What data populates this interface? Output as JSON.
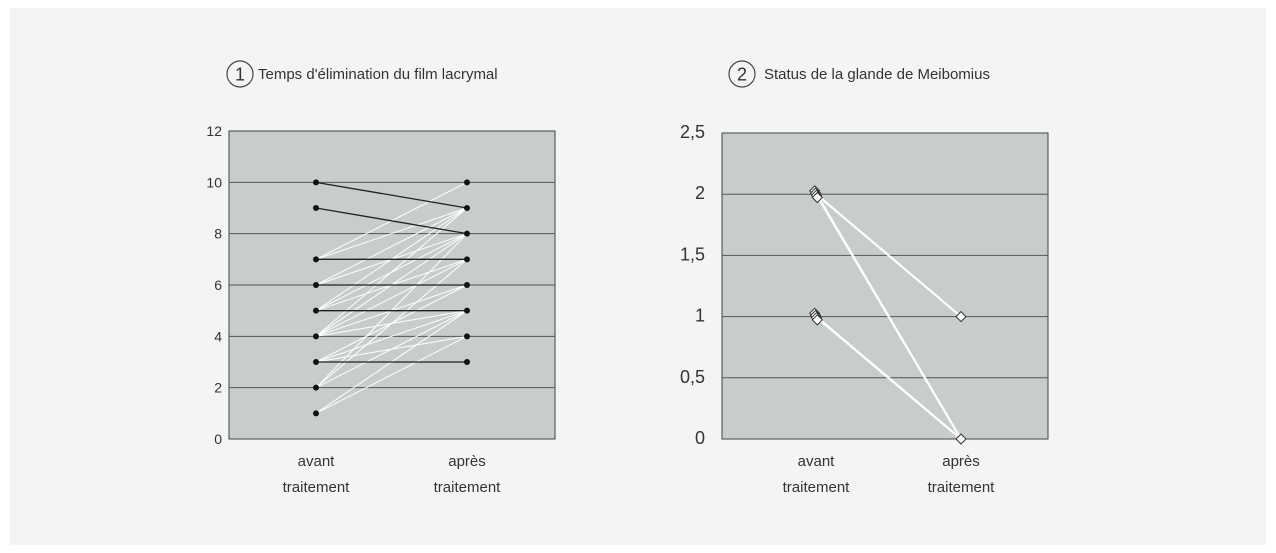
{
  "chart_data": [
    {
      "type": "line",
      "badge": "1",
      "title": "Temps d'élimination du film lacrymal",
      "categories": [
        [
          "avant",
          "traitement"
        ],
        [
          "après",
          "traitement"
        ]
      ],
      "ylim": [
        0,
        12
      ],
      "yticks": [
        "0",
        "2",
        "4",
        "6",
        "8",
        "10",
        "12"
      ],
      "ytick_values": [
        0,
        2,
        4,
        6,
        8,
        10,
        12
      ],
      "grid": true,
      "line_colors": {
        "decrease_or_same": "#222222",
        "increase": "#ffffff"
      },
      "pairs": [
        [
          10,
          9
        ],
        [
          9,
          8
        ],
        [
          7,
          7
        ],
        [
          6,
          6
        ],
        [
          5,
          5
        ],
        [
          3,
          3
        ],
        [
          7,
          9
        ],
        [
          7,
          10
        ],
        [
          6,
          8
        ],
        [
          6,
          9
        ],
        [
          5,
          7
        ],
        [
          5,
          9
        ],
        [
          5,
          8
        ],
        [
          4,
          9
        ],
        [
          4,
          7
        ],
        [
          4,
          6
        ],
        [
          4,
          5
        ],
        [
          3,
          6
        ],
        [
          3,
          4
        ],
        [
          2,
          8
        ],
        [
          2,
          5
        ],
        [
          2,
          7
        ],
        [
          1,
          5
        ],
        [
          1,
          4
        ],
        [
          4,
          8
        ],
        [
          3,
          5
        ]
      ]
    },
    {
      "type": "line",
      "badge": "2",
      "title": "Status de la glande de Meibomius",
      "categories": [
        [
          "avant",
          "traitement"
        ],
        [
          "après",
          "traitement"
        ]
      ],
      "ylim": [
        0,
        2.5
      ],
      "yticks": [
        "0",
        "0,5",
        "1",
        "1,5",
        "2",
        "2,5"
      ],
      "ytick_values": [
        0,
        0.5,
        1,
        1.5,
        2,
        2.5
      ],
      "grid": true,
      "marker": "diamond",
      "line_color": "#ffffff",
      "pairs": [
        [
          2,
          1
        ],
        [
          2,
          1
        ],
        [
          2,
          0
        ],
        [
          2,
          0
        ],
        [
          2,
          0
        ],
        [
          1,
          0
        ],
        [
          1,
          0
        ],
        [
          1,
          0
        ],
        [
          1,
          0
        ],
        [
          1,
          0
        ]
      ]
    }
  ]
}
